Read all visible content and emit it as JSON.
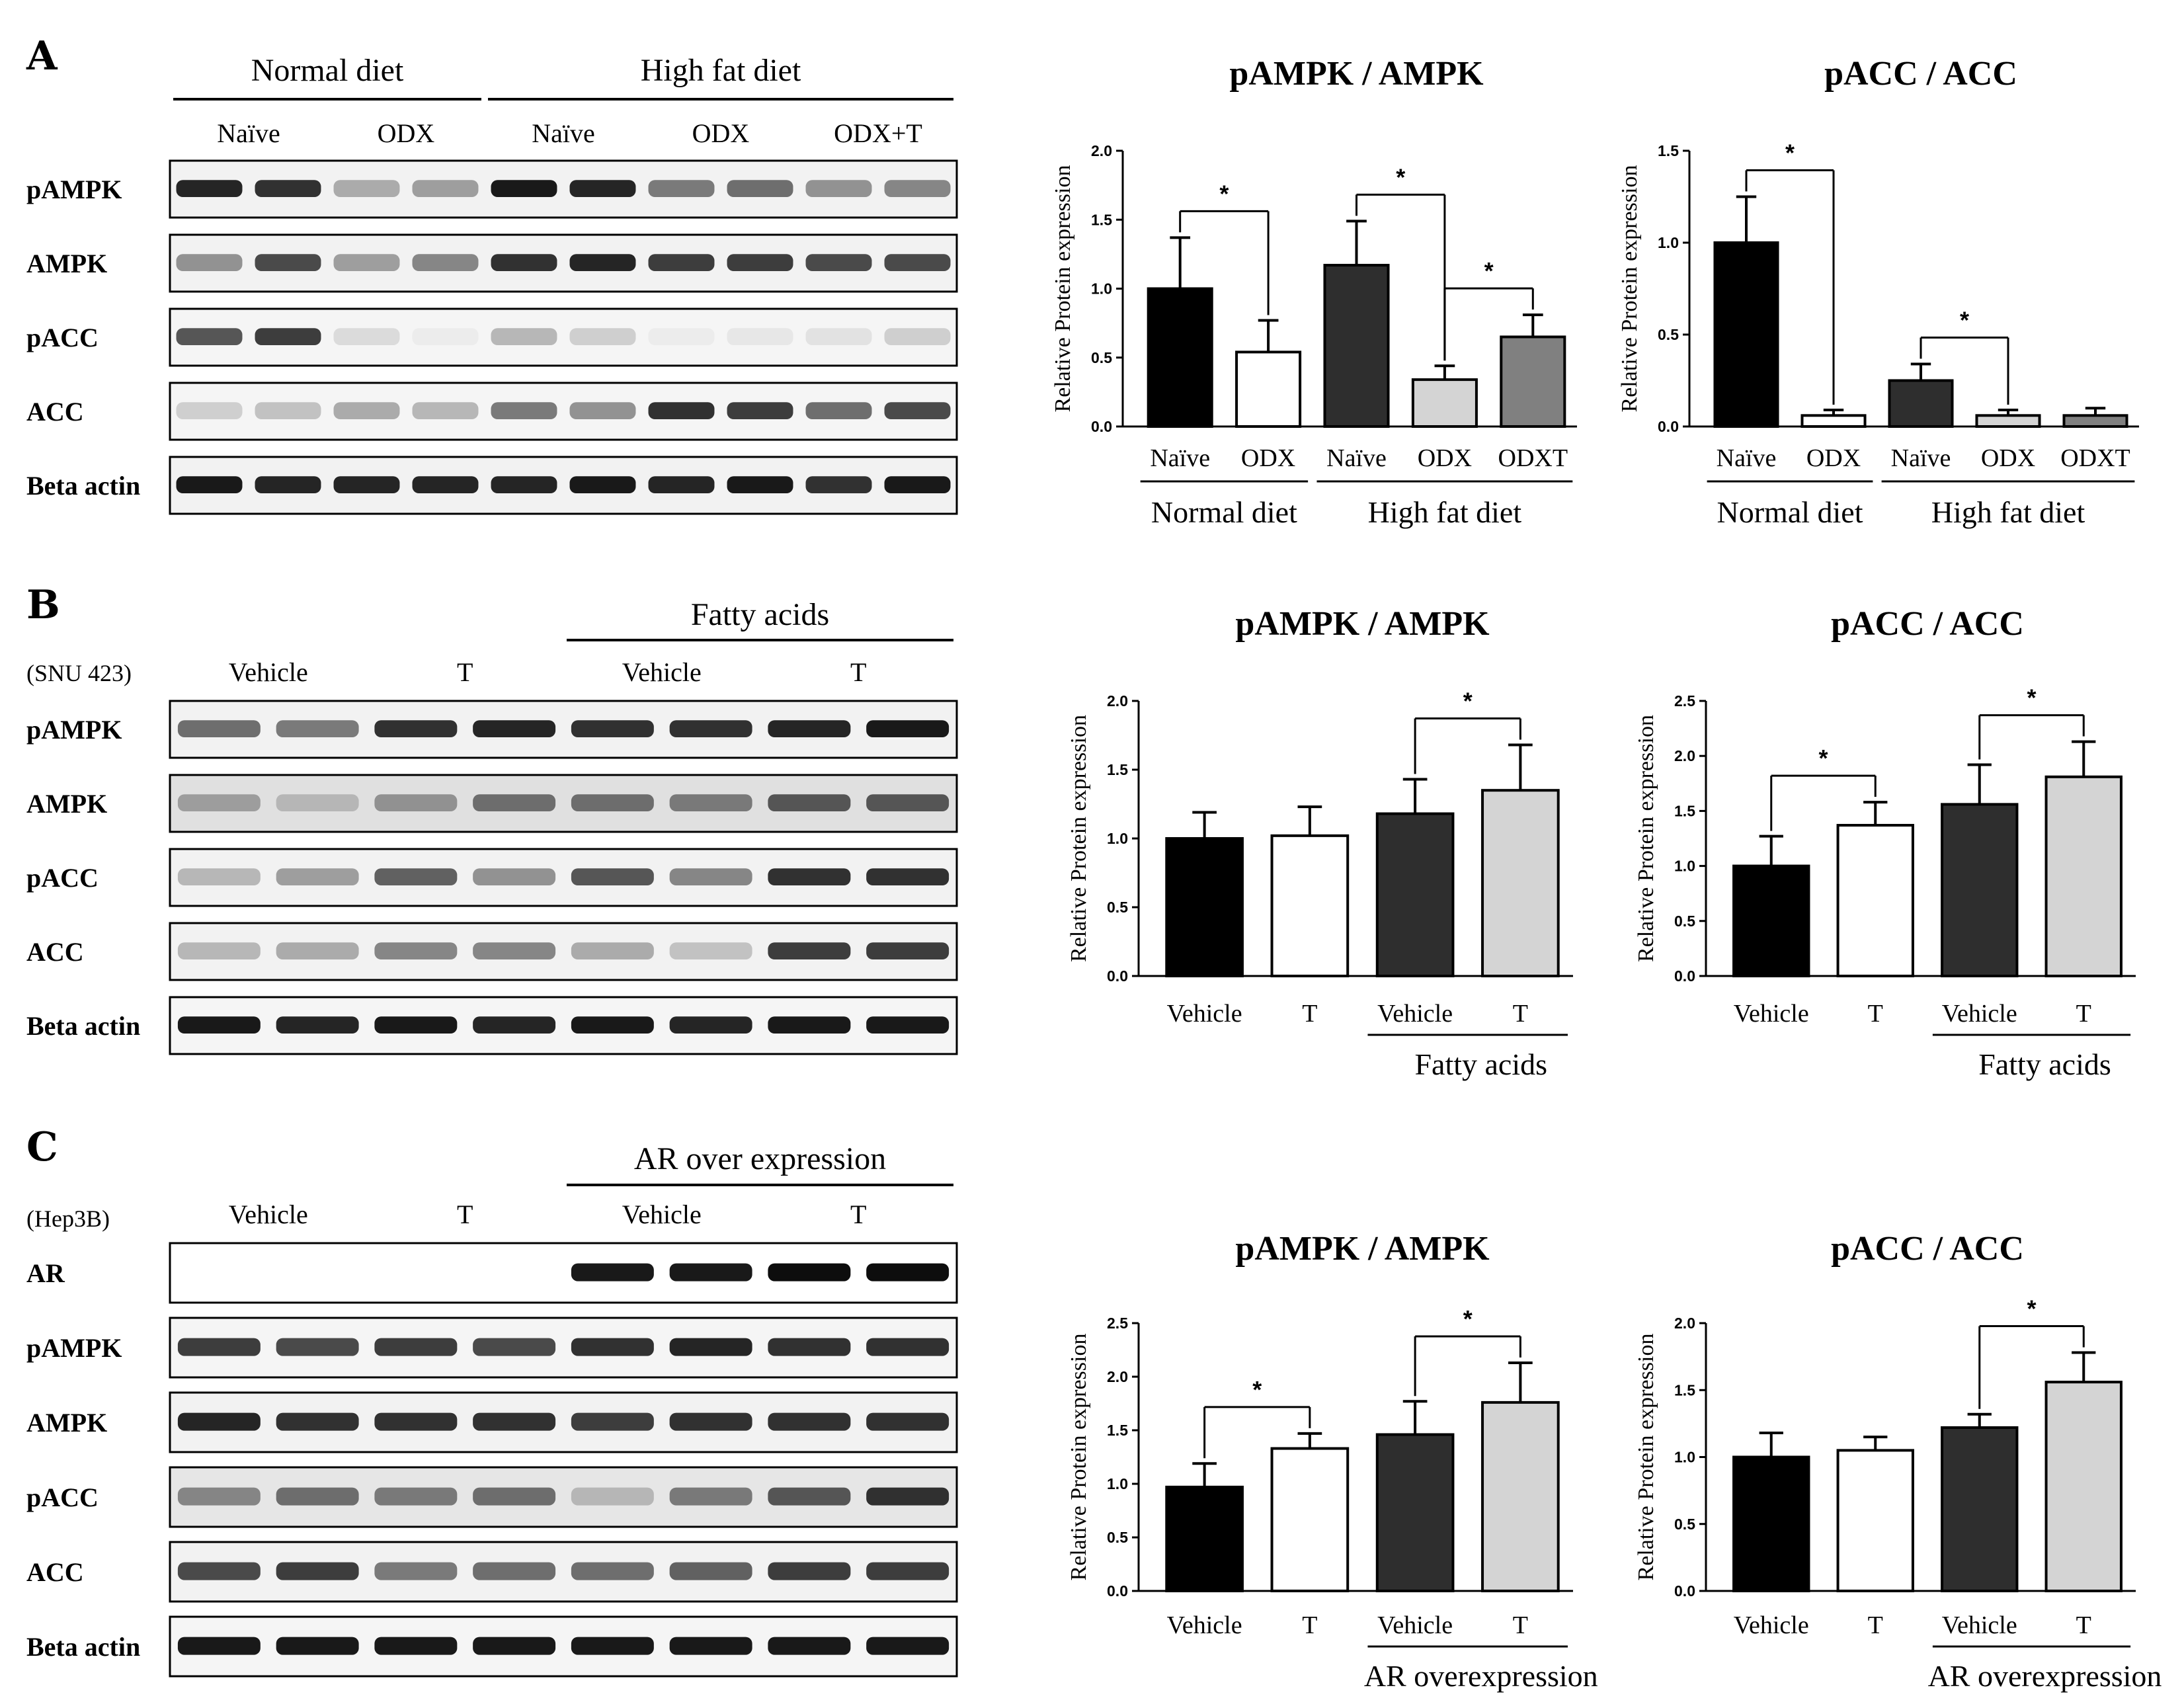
{
  "panels": [
    {
      "letter": "A",
      "cell_line": "",
      "groups": [
        {
          "label": "Normal diet",
          "from": 0,
          "to": 3
        },
        {
          "label": "High fat diet",
          "from": 4,
          "to": 9
        }
      ],
      "lane_labels": [
        {
          "label": "Naïve",
          "from": 0,
          "to": 1
        },
        {
          "label": "ODX",
          "from": 2,
          "to": 3
        },
        {
          "label": "Naïve",
          "from": 4,
          "to": 5
        },
        {
          "label": "ODX",
          "from": 6,
          "to": 7
        },
        {
          "label": "ODX+T",
          "from": 8,
          "to": 9
        }
      ],
      "blots": [
        {
          "label": "pAMPK",
          "intensities": [
            0.9,
            0.85,
            0.35,
            0.4,
            0.95,
            0.9,
            0.55,
            0.6,
            0.45,
            0.5
          ],
          "background": 0.05
        },
        {
          "label": "AMPK",
          "intensities": [
            0.45,
            0.75,
            0.4,
            0.5,
            0.85,
            0.9,
            0.8,
            0.8,
            0.75,
            0.75
          ],
          "background": 0.05
        },
        {
          "label": "pACC",
          "intensities": [
            0.7,
            0.8,
            0.15,
            0.08,
            0.3,
            0.2,
            0.08,
            0.1,
            0.12,
            0.2
          ],
          "background": 0.04
        },
        {
          "label": "ACC",
          "intensities": [
            0.2,
            0.25,
            0.35,
            0.3,
            0.55,
            0.45,
            0.85,
            0.8,
            0.6,
            0.75
          ],
          "background": 0.04
        },
        {
          "label": "Beta actin",
          "intensities": [
            0.95,
            0.9,
            0.9,
            0.9,
            0.9,
            0.95,
            0.9,
            0.95,
            0.85,
            0.95
          ],
          "background": 0.05
        }
      ]
    },
    {
      "letter": "B",
      "cell_line": "(SNU 423)",
      "groups": [
        {
          "label": "Fatty acids",
          "from": 4,
          "to": 7
        }
      ],
      "lane_labels": [
        {
          "label": "Vehicle",
          "from": 0,
          "to": 1
        },
        {
          "label": "T",
          "from": 2,
          "to": 3
        },
        {
          "label": "Vehicle",
          "from": 4,
          "to": 5
        },
        {
          "label": "T",
          "from": 6,
          "to": 7
        }
      ],
      "blots": [
        {
          "label": "pAMPK",
          "intensities": [
            0.6,
            0.55,
            0.85,
            0.9,
            0.85,
            0.85,
            0.9,
            0.95
          ],
          "background": 0.05
        },
        {
          "label": "AMPK",
          "intensities": [
            0.4,
            0.3,
            0.45,
            0.6,
            0.6,
            0.55,
            0.7,
            0.7
          ],
          "background": 0.12
        },
        {
          "label": "pACC",
          "intensities": [
            0.3,
            0.4,
            0.65,
            0.45,
            0.7,
            0.5,
            0.85,
            0.85
          ],
          "background": 0.05
        },
        {
          "label": "ACC",
          "intensities": [
            0.3,
            0.35,
            0.5,
            0.5,
            0.35,
            0.25,
            0.8,
            0.8
          ],
          "background": 0.05
        },
        {
          "label": "Beta actin",
          "intensities": [
            0.95,
            0.9,
            0.95,
            0.9,
            0.95,
            0.9,
            0.95,
            0.95
          ],
          "background": 0.04
        }
      ]
    },
    {
      "letter": "C",
      "cell_line": "(Hep3B)",
      "groups": [
        {
          "label": "AR over expression",
          "from": 4,
          "to": 7
        }
      ],
      "lane_labels": [
        {
          "label": "Vehicle",
          "from": 0,
          "to": 1
        },
        {
          "label": "T",
          "from": 2,
          "to": 3
        },
        {
          "label": "Vehicle",
          "from": 4,
          "to": 5
        },
        {
          "label": "T",
          "from": 6,
          "to": 7
        }
      ],
      "blots": [
        {
          "label": "AR",
          "intensities": [
            0,
            0,
            0,
            0,
            0.95,
            0.95,
            1.0,
            1.0
          ],
          "background": 0.0
        },
        {
          "label": "pAMPK",
          "intensities": [
            0.8,
            0.75,
            0.8,
            0.75,
            0.85,
            0.9,
            0.85,
            0.85
          ],
          "background": 0.04
        },
        {
          "label": "AMPK",
          "intensities": [
            0.9,
            0.85,
            0.85,
            0.85,
            0.8,
            0.85,
            0.85,
            0.85
          ],
          "background": 0.05
        },
        {
          "label": "pACC",
          "intensities": [
            0.5,
            0.6,
            0.55,
            0.6,
            0.3,
            0.55,
            0.7,
            0.85
          ],
          "background": 0.1
        },
        {
          "label": "ACC",
          "intensities": [
            0.75,
            0.8,
            0.55,
            0.6,
            0.6,
            0.65,
            0.8,
            0.8
          ],
          "background": 0.05
        },
        {
          "label": "Beta actin",
          "intensities": [
            0.95,
            0.95,
            0.95,
            0.95,
            0.95,
            0.95,
            0.95,
            0.95
          ],
          "background": 0.04
        }
      ]
    }
  ],
  "chart_data": [
    {
      "type": "bar",
      "title": "pAMPK / AMPK",
      "ylabel": "Relative  Protein  expression",
      "ylim": [
        0,
        2.0
      ],
      "yticks": [
        "0.0",
        "0.5",
        "1.0",
        "1.5",
        "2.0"
      ],
      "categories": [
        "Naïve",
        "ODX",
        "Naïve",
        "ODX",
        "ODXT"
      ],
      "values": [
        1.0,
        0.54,
        1.17,
        0.34,
        0.65
      ],
      "errors": [
        0.37,
        0.23,
        0.32,
        0.1,
        0.16
      ],
      "colors": [
        "#000000",
        "#ffffff",
        "#2e2e2e",
        "#d4d4d4",
        "#808080"
      ],
      "group_labels": [
        {
          "label": "Normal diet",
          "from": 0,
          "to": 1
        },
        {
          "label": "High fat diet",
          "from": 2,
          "to": 4
        }
      ],
      "significance": [
        {
          "from": 0,
          "to": 1,
          "label": "*"
        },
        {
          "from": 2,
          "to": 3,
          "label": "*"
        },
        {
          "from": 3,
          "to": 4,
          "label": "*"
        }
      ]
    },
    {
      "type": "bar",
      "title": "pACC / ACC",
      "ylabel": "Relative  Protein  expression",
      "ylim": [
        0,
        1.5
      ],
      "yticks": [
        "0.0",
        "0.5",
        "1.0",
        "1.5"
      ],
      "categories": [
        "Naïve",
        "ODX",
        "Naïve",
        "ODX",
        "ODXT"
      ],
      "values": [
        1.0,
        0.06,
        0.25,
        0.06,
        0.06
      ],
      "errors": [
        0.25,
        0.03,
        0.09,
        0.03,
        0.04
      ],
      "colors": [
        "#000000",
        "#ffffff",
        "#2e2e2e",
        "#d4d4d4",
        "#808080"
      ],
      "group_labels": [
        {
          "label": "Normal diet",
          "from": 0,
          "to": 1
        },
        {
          "label": "High fat diet",
          "from": 2,
          "to": 4
        }
      ],
      "significance": [
        {
          "from": 0,
          "to": 1,
          "label": "*"
        },
        {
          "from": 2,
          "to": 3,
          "label": "*"
        }
      ]
    },
    {
      "type": "bar",
      "title": "pAMPK / AMPK",
      "ylabel": "Relative  Protein  expression",
      "ylim": [
        0,
        2.0
      ],
      "yticks": [
        "0.0",
        "0.5",
        "1.0",
        "1.5",
        "2.0"
      ],
      "categories": [
        "Vehicle",
        "T",
        "Vehicle",
        "T"
      ],
      "values": [
        1.0,
        1.02,
        1.18,
        1.35
      ],
      "errors": [
        0.19,
        0.21,
        0.25,
        0.33
      ],
      "colors": [
        "#000000",
        "#ffffff",
        "#2e2e2e",
        "#d4d4d4"
      ],
      "group_labels": [
        {
          "label": "Fatty acids",
          "from": 2,
          "to": 3
        }
      ],
      "significance": [
        {
          "from": 2,
          "to": 3,
          "label": "*"
        }
      ]
    },
    {
      "type": "bar",
      "title": "pACC / ACC",
      "ylabel": "Relative  Protein  expression",
      "ylim": [
        0,
        2.5
      ],
      "yticks": [
        "0.0",
        "0.5",
        "1.0",
        "1.5",
        "2.0",
        "2.5"
      ],
      "categories": [
        "Vehicle",
        "T",
        "Vehicle",
        "T"
      ],
      "values": [
        1.0,
        1.37,
        1.56,
        1.81
      ],
      "errors": [
        0.27,
        0.21,
        0.36,
        0.32
      ],
      "colors": [
        "#000000",
        "#ffffff",
        "#2e2e2e",
        "#d4d4d4"
      ],
      "group_labels": [
        {
          "label": "Fatty acids",
          "from": 2,
          "to": 3
        }
      ],
      "significance": [
        {
          "from": 0,
          "to": 1,
          "label": "*"
        },
        {
          "from": 2,
          "to": 3,
          "label": "*"
        }
      ]
    },
    {
      "type": "bar",
      "title": "pAMPK / AMPK",
      "ylabel": "Relative  Protein  expression",
      "ylim": [
        0,
        2.5
      ],
      "yticks": [
        "0.0",
        "0.5",
        "1.0",
        "1.5",
        "2.0",
        "2.5"
      ],
      "categories": [
        "Vehicle",
        "T",
        "Vehicle",
        "T"
      ],
      "values": [
        0.97,
        1.33,
        1.46,
        1.76
      ],
      "errors": [
        0.22,
        0.14,
        0.31,
        0.37
      ],
      "colors": [
        "#000000",
        "#ffffff",
        "#2e2e2e",
        "#d4d4d4"
      ],
      "group_labels": [
        {
          "label": "AR overexpression",
          "from": 2,
          "to": 3
        }
      ],
      "significance": [
        {
          "from": 0,
          "to": 1,
          "label": "*"
        },
        {
          "from": 2,
          "to": 3,
          "label": "*"
        }
      ]
    },
    {
      "type": "bar",
      "title": "pACC / ACC",
      "ylabel": "Relative  Protein  expression",
      "ylim": [
        0,
        2.0
      ],
      "yticks": [
        "0.0",
        "0.5",
        "1.0",
        "1.5",
        "2.0"
      ],
      "categories": [
        "Vehicle",
        "T",
        "Vehicle",
        "T"
      ],
      "values": [
        1.0,
        1.05,
        1.22,
        1.56
      ],
      "errors": [
        0.18,
        0.1,
        0.1,
        0.22
      ],
      "colors": [
        "#000000",
        "#ffffff",
        "#2e2e2e",
        "#d4d4d4"
      ],
      "group_labels": [
        {
          "label": "AR overexpression",
          "from": 2,
          "to": 3
        }
      ],
      "significance": [
        {
          "from": 2,
          "to": 3,
          "label": "*"
        }
      ]
    }
  ]
}
